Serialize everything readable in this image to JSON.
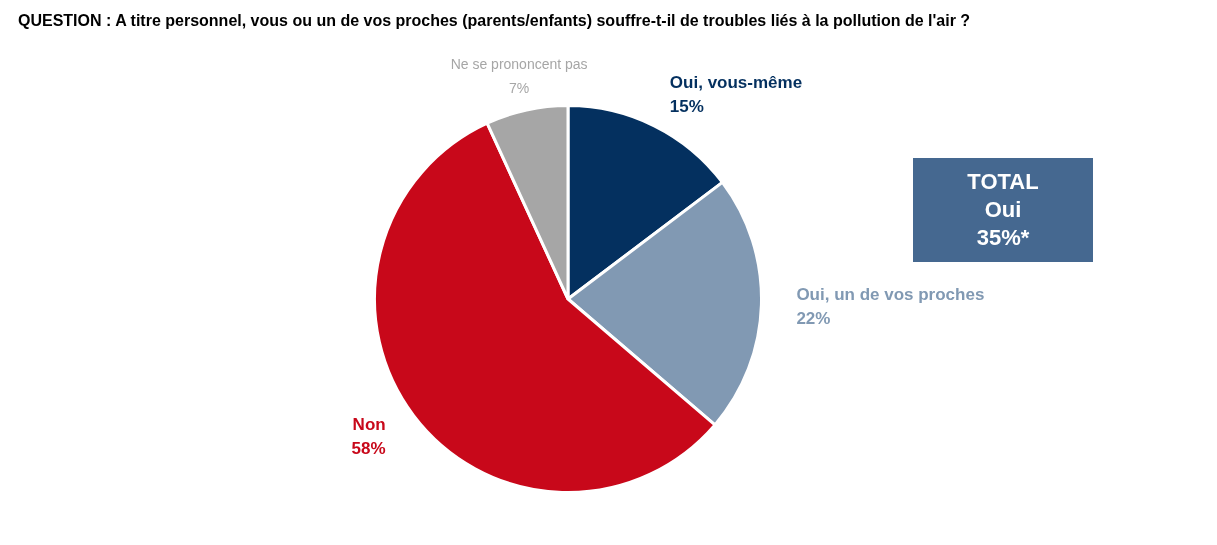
{
  "chart_data": {
    "type": "pie",
    "title": "QUESTION : A titre personnel, vous ou un de vos proches (parents/enfants) souffre-t-il de troubles liés à la pollution de l'air ?",
    "categories": [
      "Oui, vous-même",
      "Oui, un de vos proches",
      "Non",
      "Ne se prononcent pas"
    ],
    "values": [
      15,
      22,
      58,
      7
    ],
    "value_labels": [
      "15%",
      "22%",
      "58%",
      "7%"
    ],
    "colors": [
      "#04305f",
      "#8199b3",
      "#c8081a",
      "#a6a6a6"
    ],
    "annotations": [
      "TOTAL Oui 35%*"
    ],
    "legend": false
  }
}
